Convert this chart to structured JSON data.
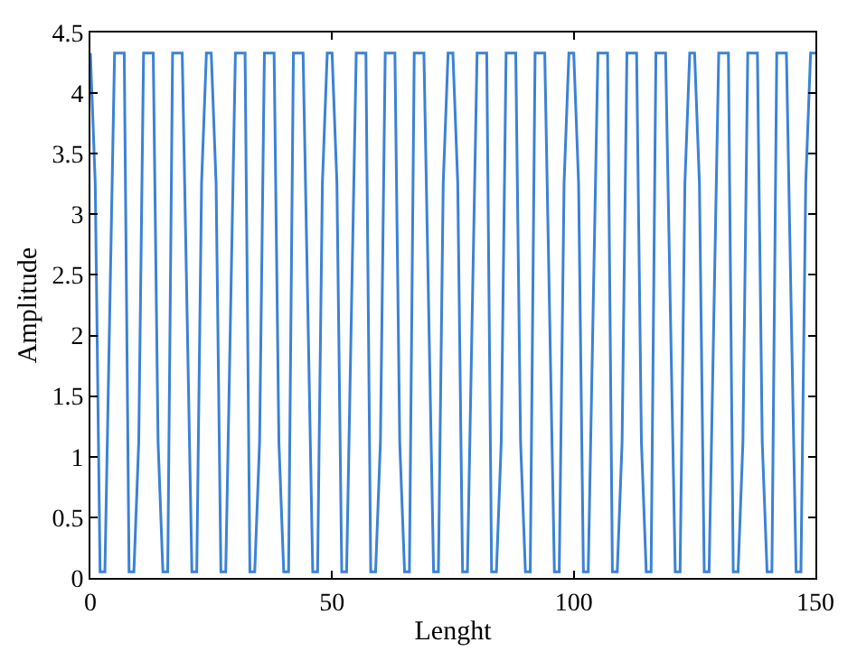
{
  "chart_data": {
    "type": "line",
    "xlabel": "Lenght",
    "ylabel": "Amplitude",
    "x": [
      0,
      1,
      2,
      3,
      4,
      5,
      6,
      7,
      8,
      9,
      10,
      11,
      12,
      13,
      14,
      15,
      16,
      17,
      18,
      19,
      20,
      21,
      22,
      23,
      24,
      25,
      26,
      27,
      28,
      29,
      30,
      31,
      32,
      33,
      34,
      35,
      36,
      37,
      38,
      39,
      40,
      41,
      42,
      43,
      44,
      45,
      46,
      47,
      48,
      49,
      50,
      51,
      52,
      53,
      54,
      55,
      56,
      57,
      58,
      59,
      60,
      61,
      62,
      63,
      64,
      65,
      66,
      67,
      68,
      69,
      70,
      71,
      72,
      73,
      74,
      75,
      76,
      77,
      78,
      79,
      80,
      81,
      82,
      83,
      84,
      85,
      86,
      87,
      88,
      89,
      90,
      91,
      92,
      93,
      94,
      95,
      96,
      97,
      98,
      99,
      100,
      101,
      102,
      103,
      104,
      105,
      106,
      107,
      108,
      109,
      110,
      111,
      112,
      113,
      114,
      115,
      116,
      117,
      118,
      119,
      120,
      121,
      122,
      123,
      124,
      125,
      126,
      127,
      128,
      129,
      130,
      131,
      132,
      133,
      134,
      135,
      136,
      137,
      138,
      139,
      140,
      141,
      142,
      143,
      144,
      145,
      146,
      147,
      148,
      149,
      150
    ],
    "series": [
      {
        "color": "#3b82d6",
        "values": [
          4.33,
          3.26,
          0.05,
          0.05,
          2.19,
          4.33,
          4.33,
          4.33,
          0.05,
          0.05,
          1.12,
          4.33,
          4.33,
          4.33,
          1.12,
          0.05,
          0.05,
          4.33,
          4.33,
          4.33,
          2.19,
          0.05,
          0.05,
          3.26,
          4.33,
          4.33,
          3.26,
          0.05,
          0.05,
          2.19,
          4.33,
          4.33,
          4.33,
          0.05,
          0.05,
          1.12,
          4.33,
          4.33,
          4.33,
          1.12,
          0.05,
          0.05,
          4.33,
          4.33,
          4.33,
          2.19,
          0.05,
          0.05,
          3.26,
          4.33,
          4.33,
          3.26,
          0.05,
          0.05,
          2.19,
          4.33,
          4.33,
          4.33,
          0.05,
          0.05,
          1.12,
          4.33,
          4.33,
          4.33,
          1.12,
          0.05,
          0.05,
          4.33,
          4.33,
          4.33,
          2.19,
          0.05,
          0.05,
          3.26,
          4.33,
          4.33,
          3.26,
          0.05,
          0.05,
          2.19,
          4.33,
          4.33,
          4.33,
          0.05,
          0.05,
          1.12,
          4.33,
          4.33,
          4.33,
          1.12,
          0.05,
          0.05,
          4.33,
          4.33,
          4.33,
          2.19,
          0.05,
          0.05,
          3.26,
          4.33,
          4.33,
          3.26,
          0.05,
          0.05,
          2.19,
          4.33,
          4.33,
          4.33,
          0.05,
          0.05,
          1.12,
          4.33,
          4.33,
          4.33,
          1.12,
          0.05,
          0.05,
          4.33,
          4.33,
          4.33,
          2.19,
          0.05,
          0.05,
          3.26,
          4.33,
          4.33,
          3.26,
          0.05,
          0.05,
          2.19,
          4.33,
          4.33,
          4.33,
          0.05,
          0.05,
          1.12,
          4.33,
          4.33,
          4.33,
          1.12,
          0.05,
          0.05,
          4.33,
          4.33,
          4.33,
          2.19,
          0.05,
          0.05,
          3.26,
          4.33,
          4.33
        ]
      }
    ],
    "xlim": [
      0,
      150
    ],
    "xticks": [
      0,
      50,
      100,
      150
    ],
    "ylim": [
      0,
      4.5
    ],
    "yticks": [
      0,
      0.5,
      1,
      1.5,
      2,
      2.5,
      3,
      3.5,
      4,
      4.5
    ],
    "marker": "none",
    "line_style": "solid"
  }
}
